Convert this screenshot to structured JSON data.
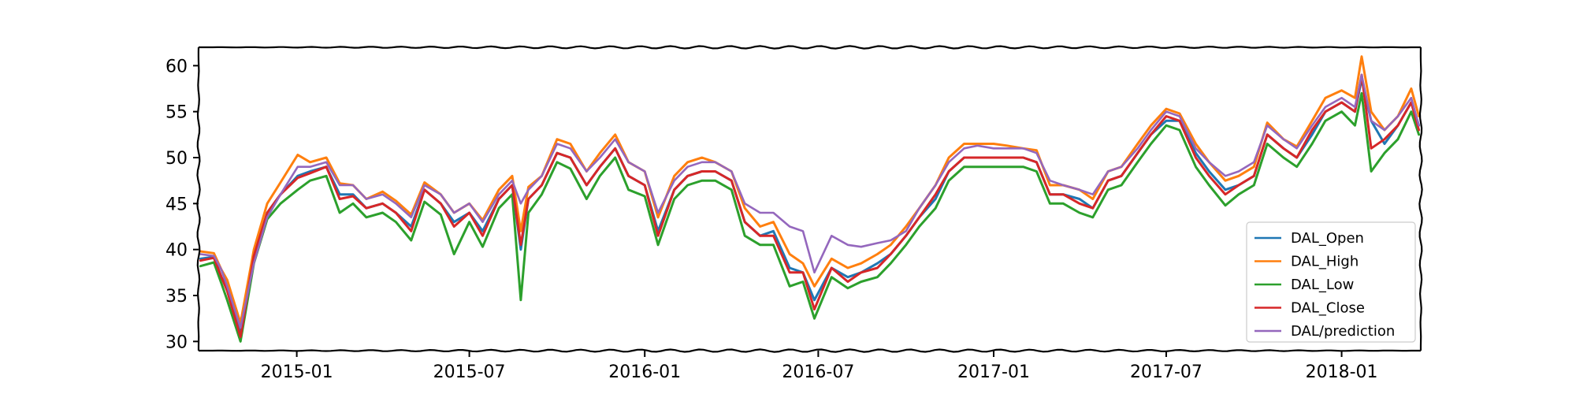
{
  "chart_data": {
    "type": "line",
    "title": "",
    "xlabel": "",
    "ylabel": "",
    "x_range": [
      "2014-09-20",
      "2018-03-25"
    ],
    "ylim": [
      29,
      62
    ],
    "yticks": [
      30,
      35,
      40,
      45,
      50,
      55,
      60
    ],
    "xticks": [
      {
        "date": "2015-01-01",
        "label": "2015-01"
      },
      {
        "date": "2015-07-01",
        "label": "2015-07"
      },
      {
        "date": "2016-01-01",
        "label": "2016-01"
      },
      {
        "date": "2016-07-01",
        "label": "2016-07"
      },
      {
        "date": "2017-01-01",
        "label": "2017-01"
      },
      {
        "date": "2017-07-01",
        "label": "2017-07"
      },
      {
        "date": "2018-01-01",
        "label": "2018-01"
      }
    ],
    "grid": false,
    "legend_position": "lower right",
    "x": [
      "2014-09-22",
      "2014-10-06",
      "2014-10-14",
      "2014-10-20",
      "2014-11-03",
      "2014-11-17",
      "2014-12-01",
      "2014-12-15",
      "2015-01-02",
      "2015-01-15",
      "2015-02-01",
      "2015-02-15",
      "2015-03-01",
      "2015-03-15",
      "2015-04-01",
      "2015-04-15",
      "2015-05-01",
      "2015-05-15",
      "2015-06-01",
      "2015-06-15",
      "2015-07-01",
      "2015-07-15",
      "2015-08-01",
      "2015-08-15",
      "2015-08-24",
      "2015-09-01",
      "2015-09-15",
      "2015-10-01",
      "2015-10-15",
      "2015-11-01",
      "2015-11-15",
      "2015-12-01",
      "2015-12-15",
      "2016-01-01",
      "2016-01-15",
      "2016-02-01",
      "2016-02-15",
      "2016-03-01",
      "2016-03-15",
      "2016-04-01",
      "2016-04-15",
      "2016-05-01",
      "2016-05-15",
      "2016-06-01",
      "2016-06-15",
      "2016-06-27",
      "2016-07-15",
      "2016-08-01",
      "2016-08-15",
      "2016-09-01",
      "2016-09-15",
      "2016-10-01",
      "2016-10-15",
      "2016-11-01",
      "2016-11-15",
      "2016-12-01",
      "2016-12-15",
      "2017-01-01",
      "2017-01-15",
      "2017-02-01",
      "2017-02-15",
      "2017-03-01",
      "2017-03-15",
      "2017-04-01",
      "2017-04-15",
      "2017-05-01",
      "2017-05-15",
      "2017-06-01",
      "2017-06-15",
      "2017-07-01",
      "2017-07-15",
      "2017-08-01",
      "2017-08-15",
      "2017-09-01",
      "2017-09-15",
      "2017-10-01",
      "2017-10-15",
      "2017-11-01",
      "2017-11-15",
      "2017-12-01",
      "2017-12-15",
      "2018-01-01",
      "2018-01-15",
      "2018-01-22",
      "2018-02-01",
      "2018-02-15",
      "2018-03-01",
      "2018-03-15",
      "2018-03-23"
    ],
    "series": [
      {
        "name": "DAL_Open",
        "color": "#1f77b4",
        "values": [
          39.0,
          39.2,
          37.0,
          35.8,
          30.8,
          39.0,
          44.0,
          46.0,
          48.0,
          48.5,
          49.0,
          46.0,
          46.0,
          44.5,
          45.0,
          44.0,
          42.5,
          46.5,
          45.0,
          43.0,
          44.0,
          42.0,
          45.5,
          47.0,
          40.0,
          45.5,
          47.0,
          50.5,
          50.0,
          47.0,
          49.0,
          51.0,
          48.0,
          47.0,
          42.0,
          46.5,
          48.0,
          48.5,
          48.5,
          47.5,
          43.0,
          41.5,
          42.0,
          38.0,
          37.5,
          34.5,
          38.0,
          37.0,
          37.5,
          38.5,
          39.5,
          41.5,
          43.5,
          45.5,
          48.5,
          50.0,
          50.0,
          50.0,
          50.0,
          50.0,
          49.5,
          46.0,
          46.0,
          45.5,
          44.5,
          47.5,
          48.0,
          50.5,
          52.5,
          54.0,
          54.0,
          50.5,
          48.5,
          46.5,
          47.0,
          48.0,
          52.5,
          51.0,
          50.0,
          52.5,
          55.0,
          56.0,
          55.0,
          58.5,
          54.0,
          51.5,
          53.5,
          56.0,
          53.5
        ]
      },
      {
        "name": "DAL_High",
        "color": "#ff7f0e",
        "values": [
          39.8,
          39.6,
          37.8,
          36.7,
          32.0,
          40.0,
          45.0,
          47.3,
          50.3,
          49.5,
          50.0,
          47.2,
          47.0,
          45.5,
          46.3,
          45.3,
          43.8,
          47.3,
          46.0,
          44.0,
          45.0,
          43.2,
          46.5,
          48.0,
          42.0,
          46.8,
          48.0,
          52.0,
          51.5,
          48.5,
          50.5,
          52.5,
          49.5,
          48.5,
          43.5,
          48.0,
          49.5,
          50.0,
          49.5,
          48.5,
          44.5,
          42.5,
          43.0,
          39.5,
          38.5,
          36.0,
          39.0,
          38.0,
          38.5,
          39.5,
          40.5,
          42.5,
          44.5,
          47.0,
          50.0,
          51.5,
          51.5,
          51.5,
          51.3,
          51.0,
          50.8,
          47.0,
          47.0,
          46.5,
          45.5,
          48.5,
          49.0,
          51.5,
          53.5,
          55.3,
          54.8,
          51.5,
          49.5,
          47.5,
          48.0,
          49.0,
          53.8,
          52.0,
          51.2,
          54.0,
          56.5,
          57.3,
          56.5,
          61.0,
          55.0,
          53.0,
          54.5,
          57.5,
          54.5
        ]
      },
      {
        "name": "DAL_Low",
        "color": "#2ca02c",
        "values": [
          38.2,
          38.6,
          36.3,
          34.5,
          30.0,
          38.5,
          43.3,
          45.0,
          46.5,
          47.5,
          48.0,
          44.0,
          45.0,
          43.5,
          44.0,
          43.0,
          41.0,
          45.2,
          43.8,
          39.5,
          43.0,
          40.3,
          44.5,
          46.0,
          34.5,
          44.0,
          46.0,
          49.5,
          48.8,
          45.5,
          48.0,
          50.0,
          46.5,
          45.8,
          40.5,
          45.5,
          47.0,
          47.5,
          47.5,
          46.5,
          41.5,
          40.5,
          40.5,
          36.0,
          36.5,
          32.5,
          37.0,
          35.8,
          36.5,
          37.0,
          38.5,
          40.5,
          42.5,
          44.5,
          47.5,
          49.0,
          49.0,
          49.0,
          49.0,
          49.0,
          48.5,
          45.0,
          45.0,
          44.0,
          43.5,
          46.5,
          47.0,
          49.5,
          51.5,
          53.5,
          53.0,
          49.0,
          47.0,
          44.8,
          46.0,
          47.0,
          51.5,
          50.0,
          49.0,
          51.5,
          54.0,
          55.0,
          53.5,
          57.0,
          48.5,
          50.5,
          52.0,
          55.0,
          52.5
        ]
      },
      {
        "name": "DAL_Close",
        "color": "#d62728",
        "values": [
          38.8,
          39.1,
          37.0,
          35.5,
          30.5,
          39.3,
          44.0,
          46.0,
          47.8,
          48.3,
          49.0,
          45.5,
          45.8,
          44.5,
          45.0,
          44.0,
          42.0,
          46.5,
          45.0,
          42.5,
          44.0,
          41.5,
          45.5,
          47.0,
          40.5,
          45.5,
          47.0,
          50.5,
          50.0,
          47.0,
          49.0,
          51.0,
          48.0,
          47.0,
          41.5,
          46.5,
          48.0,
          48.5,
          48.5,
          47.5,
          43.0,
          41.5,
          41.5,
          37.5,
          37.5,
          33.5,
          38.0,
          36.5,
          37.5,
          38.0,
          39.5,
          41.5,
          43.5,
          46.0,
          48.5,
          50.0,
          50.0,
          50.0,
          50.0,
          50.0,
          49.5,
          46.0,
          46.0,
          45.0,
          44.5,
          47.5,
          48.0,
          50.5,
          52.5,
          54.5,
          54.0,
          50.0,
          48.0,
          46.0,
          47.0,
          48.0,
          52.5,
          51.0,
          50.0,
          53.0,
          55.0,
          56.0,
          55.0,
          59.0,
          51.0,
          52.0,
          53.5,
          56.0,
          53.0
        ]
      },
      {
        "name": "DAL/prediction",
        "color": "#9467bd",
        "values": [
          39.5,
          39.3,
          37.8,
          36.0,
          31.5,
          38.5,
          43.5,
          46.0,
          49.0,
          49.0,
          49.5,
          47.0,
          47.0,
          45.5,
          46.0,
          45.0,
          43.5,
          47.0,
          46.0,
          44.0,
          45.0,
          43.0,
          46.0,
          47.5,
          45.0,
          46.5,
          48.0,
          51.5,
          51.0,
          48.5,
          50.0,
          52.0,
          49.5,
          48.5,
          44.0,
          47.5,
          49.0,
          49.5,
          49.5,
          48.5,
          45.0,
          44.0,
          44.0,
          42.5,
          42.0,
          37.5,
          41.5,
          40.5,
          40.3,
          40.7,
          41.0,
          42.0,
          44.5,
          47.0,
          49.5,
          51.0,
          51.3,
          51.0,
          51.0,
          51.0,
          50.5,
          47.5,
          47.0,
          46.5,
          46.0,
          48.5,
          49.0,
          51.0,
          53.0,
          55.0,
          54.5,
          51.0,
          49.5,
          48.0,
          48.5,
          49.5,
          53.5,
          52.0,
          51.0,
          53.5,
          55.5,
          56.5,
          55.5,
          59.0,
          54.0,
          53.0,
          54.5,
          56.5,
          53.5
        ]
      }
    ]
  }
}
